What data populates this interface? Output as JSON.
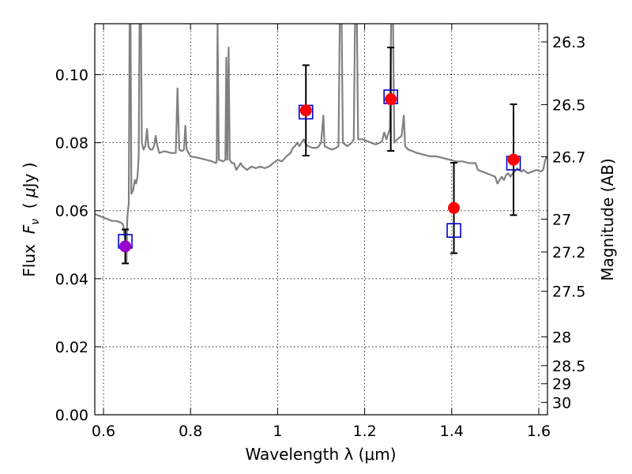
{
  "chart_data": {
    "type": "scatter",
    "xlabel": "Wavelength  λ (μm)",
    "ylabel": "Flux  F_ν  ( μJy )",
    "ylabel_parts": {
      "prefix": "Flux  ",
      "var": "F",
      "sub": "ν",
      "mid": "  ( ",
      "mu": "μ",
      "suffix": "Jy )"
    },
    "y2label": "Magnitude (AB)",
    "xlim": [
      0.58,
      1.62
    ],
    "ylim": [
      0.0,
      0.115
    ],
    "xticks": [
      {
        "value": 0.6,
        "label": "0.6"
      },
      {
        "value": 0.8,
        "label": "0.8"
      },
      {
        "value": 1.0,
        "label": "1"
      },
      {
        "value": 1.2,
        "label": "1.2"
      },
      {
        "value": 1.4,
        "label": "1.4"
      },
      {
        "value": 1.6,
        "label": "1.6"
      }
    ],
    "yticks": [
      {
        "value": 0.0,
        "label": "0.00"
      },
      {
        "value": 0.02,
        "label": "0.02"
      },
      {
        "value": 0.04,
        "label": "0.04"
      },
      {
        "value": 0.06,
        "label": "0.06"
      },
      {
        "value": 0.08,
        "label": "0.08"
      },
      {
        "value": 0.1,
        "label": "0.10"
      }
    ],
    "y2ticks": [
      {
        "label": "26.3"
      },
      {
        "label": "26.5"
      },
      {
        "label": "26.7"
      },
      {
        "label": "27"
      },
      {
        "label": "27.2"
      },
      {
        "label": "27.5"
      },
      {
        "label": "28"
      },
      {
        "label": "28.5"
      },
      {
        "label": "29"
      },
      {
        "label": "30"
      }
    ],
    "zeropoint_mag": 23.9,
    "grid": true,
    "colors": {
      "spectrum": "#808080",
      "observed": "#ff0000",
      "observed_first": "#9900cc",
      "model": "#0000cc",
      "errorbar": "#000000"
    },
    "observed": [
      {
        "x": 0.65,
        "y": 0.0495,
        "err": 0.005
      },
      {
        "x": 1.065,
        "y": 0.0895,
        "err": 0.0133
      },
      {
        "x": 1.26,
        "y": 0.0928,
        "err": 0.0152
      },
      {
        "x": 1.405,
        "y": 0.0608,
        "err": 0.0133
      },
      {
        "x": 1.542,
        "y": 0.075,
        "err": 0.0163
      }
    ],
    "model": [
      {
        "x": 0.65,
        "y": 0.051
      },
      {
        "x": 1.065,
        "y": 0.089
      },
      {
        "x": 1.26,
        "y": 0.0935
      },
      {
        "x": 1.405,
        "y": 0.0542
      },
      {
        "x": 1.542,
        "y": 0.074
      }
    ],
    "spectrum": [
      [
        0.58,
        0.059
      ],
      [
        0.59,
        0.0585
      ],
      [
        0.6,
        0.058
      ],
      [
        0.61,
        0.0575
      ],
      [
        0.62,
        0.057
      ],
      [
        0.63,
        0.057
      ],
      [
        0.64,
        0.0565
      ],
      [
        0.645,
        0.056
      ],
      [
        0.649,
        0.052
      ],
      [
        0.651,
        0.0545
      ],
      [
        0.653,
        0.045
      ],
      [
        0.6545,
        0.057
      ],
      [
        0.656,
        0.06
      ],
      [
        0.658,
        0.062
      ],
      [
        0.66,
        0.118
      ],
      [
        0.662,
        0.118
      ],
      [
        0.664,
        0.065
      ],
      [
        0.668,
        0.066
      ],
      [
        0.672,
        0.069
      ],
      [
        0.675,
        0.068
      ],
      [
        0.678,
        0.07
      ],
      [
        0.681,
        0.076
      ],
      [
        0.683,
        0.118
      ],
      [
        0.686,
        0.118
      ],
      [
        0.688,
        0.08
      ],
      [
        0.692,
        0.078
      ],
      [
        0.696,
        0.079
      ],
      [
        0.7,
        0.084
      ],
      [
        0.703,
        0.079
      ],
      [
        0.707,
        0.078
      ],
      [
        0.712,
        0.078
      ],
      [
        0.716,
        0.079
      ],
      [
        0.72,
        0.082
      ],
      [
        0.724,
        0.079
      ],
      [
        0.728,
        0.077
      ],
      [
        0.74,
        0.0775
      ],
      [
        0.755,
        0.077
      ],
      [
        0.766,
        0.077
      ],
      [
        0.77,
        0.096
      ],
      [
        0.774,
        0.078
      ],
      [
        0.78,
        0.0775
      ],
      [
        0.785,
        0.078
      ],
      [
        0.788,
        0.085
      ],
      [
        0.791,
        0.078
      ],
      [
        0.8,
        0.076
      ],
      [
        0.82,
        0.0755
      ],
      [
        0.835,
        0.075
      ],
      [
        0.85,
        0.0745
      ],
      [
        0.858,
        0.074
      ],
      [
        0.86,
        0.0745
      ],
      [
        0.862,
        0.115
      ],
      [
        0.865,
        0.075
      ],
      [
        0.875,
        0.0745
      ],
      [
        0.88,
        0.075
      ],
      [
        0.882,
        0.105
      ],
      [
        0.8845,
        0.075
      ],
      [
        0.8875,
        0.108
      ],
      [
        0.89,
        0.075
      ],
      [
        0.895,
        0.074
      ],
      [
        0.9,
        0.074
      ],
      [
        0.905,
        0.072
      ],
      [
        0.91,
        0.073
      ],
      [
        0.915,
        0.074
      ],
      [
        0.92,
        0.073
      ],
      [
        0.93,
        0.072
      ],
      [
        0.94,
        0.073
      ],
      [
        0.95,
        0.0725
      ],
      [
        0.96,
        0.073
      ],
      [
        0.97,
        0.0725
      ],
      [
        0.98,
        0.073
      ],
      [
        0.99,
        0.074
      ],
      [
        1.0,
        0.075
      ],
      [
        1.01,
        0.0745
      ],
      [
        1.02,
        0.076
      ],
      [
        1.03,
        0.077
      ],
      [
        1.035,
        0.0785
      ],
      [
        1.04,
        0.079
      ],
      [
        1.045,
        0.08
      ],
      [
        1.05,
        0.079
      ],
      [
        1.055,
        0.08
      ],
      [
        1.06,
        0.081
      ],
      [
        1.065,
        0.0795
      ],
      [
        1.07,
        0.079
      ],
      [
        1.08,
        0.0785
      ],
      [
        1.09,
        0.0785
      ],
      [
        1.095,
        0.079
      ],
      [
        1.1,
        0.08
      ],
      [
        1.105,
        0.088
      ],
      [
        1.108,
        0.079
      ],
      [
        1.115,
        0.0785
      ],
      [
        1.125,
        0.078
      ],
      [
        1.135,
        0.0785
      ],
      [
        1.14,
        0.079
      ],
      [
        1.143,
        0.118
      ],
      [
        1.147,
        0.118
      ],
      [
        1.15,
        0.08
      ],
      [
        1.16,
        0.079
      ],
      [
        1.17,
        0.08
      ],
      [
        1.175,
        0.081
      ],
      [
        1.178,
        0.118
      ],
      [
        1.182,
        0.118
      ],
      [
        1.185,
        0.081
      ],
      [
        1.195,
        0.081
      ],
      [
        1.205,
        0.0805
      ],
      [
        1.215,
        0.08
      ],
      [
        1.225,
        0.0795
      ],
      [
        1.235,
        0.08
      ],
      [
        1.24,
        0.0805
      ],
      [
        1.245,
        0.083
      ],
      [
        1.25,
        0.081
      ],
      [
        1.255,
        0.083
      ],
      [
        1.258,
        0.084
      ],
      [
        1.261,
        0.118
      ],
      [
        1.265,
        0.118
      ],
      [
        1.268,
        0.08
      ],
      [
        1.275,
        0.081
      ],
      [
        1.285,
        0.082
      ],
      [
        1.29,
        0.088
      ],
      [
        1.293,
        0.079
      ],
      [
        1.3,
        0.078
      ],
      [
        1.31,
        0.0775
      ],
      [
        1.32,
        0.077
      ],
      [
        1.335,
        0.0765
      ],
      [
        1.35,
        0.076
      ],
      [
        1.365,
        0.076
      ],
      [
        1.38,
        0.0755
      ],
      [
        1.395,
        0.075
      ],
      [
        1.41,
        0.0745
      ],
      [
        1.425,
        0.0745
      ],
      [
        1.44,
        0.074
      ],
      [
        1.455,
        0.074
      ],
      [
        1.46,
        0.072
      ],
      [
        1.47,
        0.0715
      ],
      [
        1.48,
        0.071
      ],
      [
        1.49,
        0.0705
      ],
      [
        1.5,
        0.07
      ],
      [
        1.505,
        0.068
      ],
      [
        1.51,
        0.069
      ],
      [
        1.515,
        0.07
      ],
      [
        1.52,
        0.069
      ],
      [
        1.525,
        0.0705
      ],
      [
        1.53,
        0.071
      ],
      [
        1.535,
        0.07
      ],
      [
        1.54,
        0.071
      ],
      [
        1.545,
        0.0715
      ],
      [
        1.55,
        0.0725
      ],
      [
        1.555,
        0.072
      ],
      [
        1.56,
        0.0715
      ],
      [
        1.565,
        0.072
      ],
      [
        1.575,
        0.071
      ],
      [
        1.585,
        0.0715
      ],
      [
        1.595,
        0.072
      ],
      [
        1.605,
        0.0715
      ],
      [
        1.61,
        0.072
      ],
      [
        1.615,
        0.075
      ],
      [
        1.62,
        0.076
      ]
    ]
  }
}
